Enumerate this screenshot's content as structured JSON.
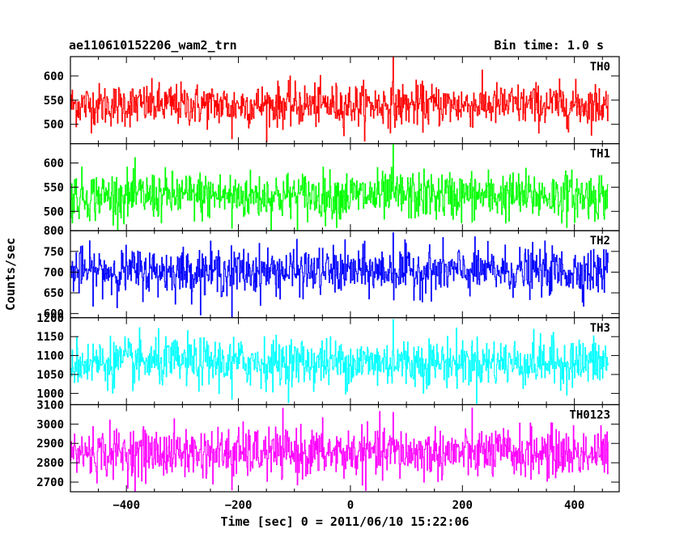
{
  "header": {
    "title": "ae110610152206_wam2_trn",
    "bin_time": "Bin time: 1.0 s"
  },
  "chart_data": {
    "type": "line",
    "title": "ae110610152206_wam2_trn",
    "subtitle": "Bin time: 1.0 s",
    "xlabel": "Time [sec] 0 = 2011/06/10 15:22:06",
    "ylabel": "Counts/sec",
    "xlim": [
      -500,
      480
    ],
    "x_ticks": [
      -400,
      -200,
      0,
      200,
      400
    ],
    "x_start": -500,
    "x_end": 460,
    "x_step": 1,
    "grid": false,
    "panels": [
      {
        "name": "TH0",
        "color": "#ff0000",
        "ylim": [
          460,
          640
        ],
        "y_ticks": [
          500,
          550,
          600
        ],
        "mean": 540,
        "sigma": 22,
        "peak": 640,
        "trough": 470
      },
      {
        "name": "TH1",
        "color": "#00ff00",
        "ylim": [
          460,
          640
        ],
        "y_ticks": [
          500,
          550,
          600
        ],
        "mean": 532,
        "sigma": 25,
        "peak": 640,
        "trough": 465
      },
      {
        "name": "TH2",
        "color": "#0000ff",
        "ylim": [
          590,
          800
        ],
        "y_ticks": [
          600,
          650,
          700,
          750,
          800
        ],
        "mean": 702,
        "sigma": 28,
        "peak": 795,
        "trough": 592
      },
      {
        "name": "TH3",
        "color": "#00ffff",
        "ylim": [
          970,
          1200
        ],
        "y_ticks": [
          1000,
          1050,
          1100,
          1150,
          1200
        ],
        "mean": 1082,
        "sigma": 32,
        "peak": 1195,
        "trough": 985
      },
      {
        "name": "TH0123",
        "color": "#ff00ff",
        "ylim": [
          2650,
          3100
        ],
        "y_ticks": [
          2700,
          2800,
          2900,
          3000,
          3100
        ],
        "mean": 2850,
        "sigma": 65,
        "peak": 3060,
        "trough": 2660
      }
    ]
  }
}
